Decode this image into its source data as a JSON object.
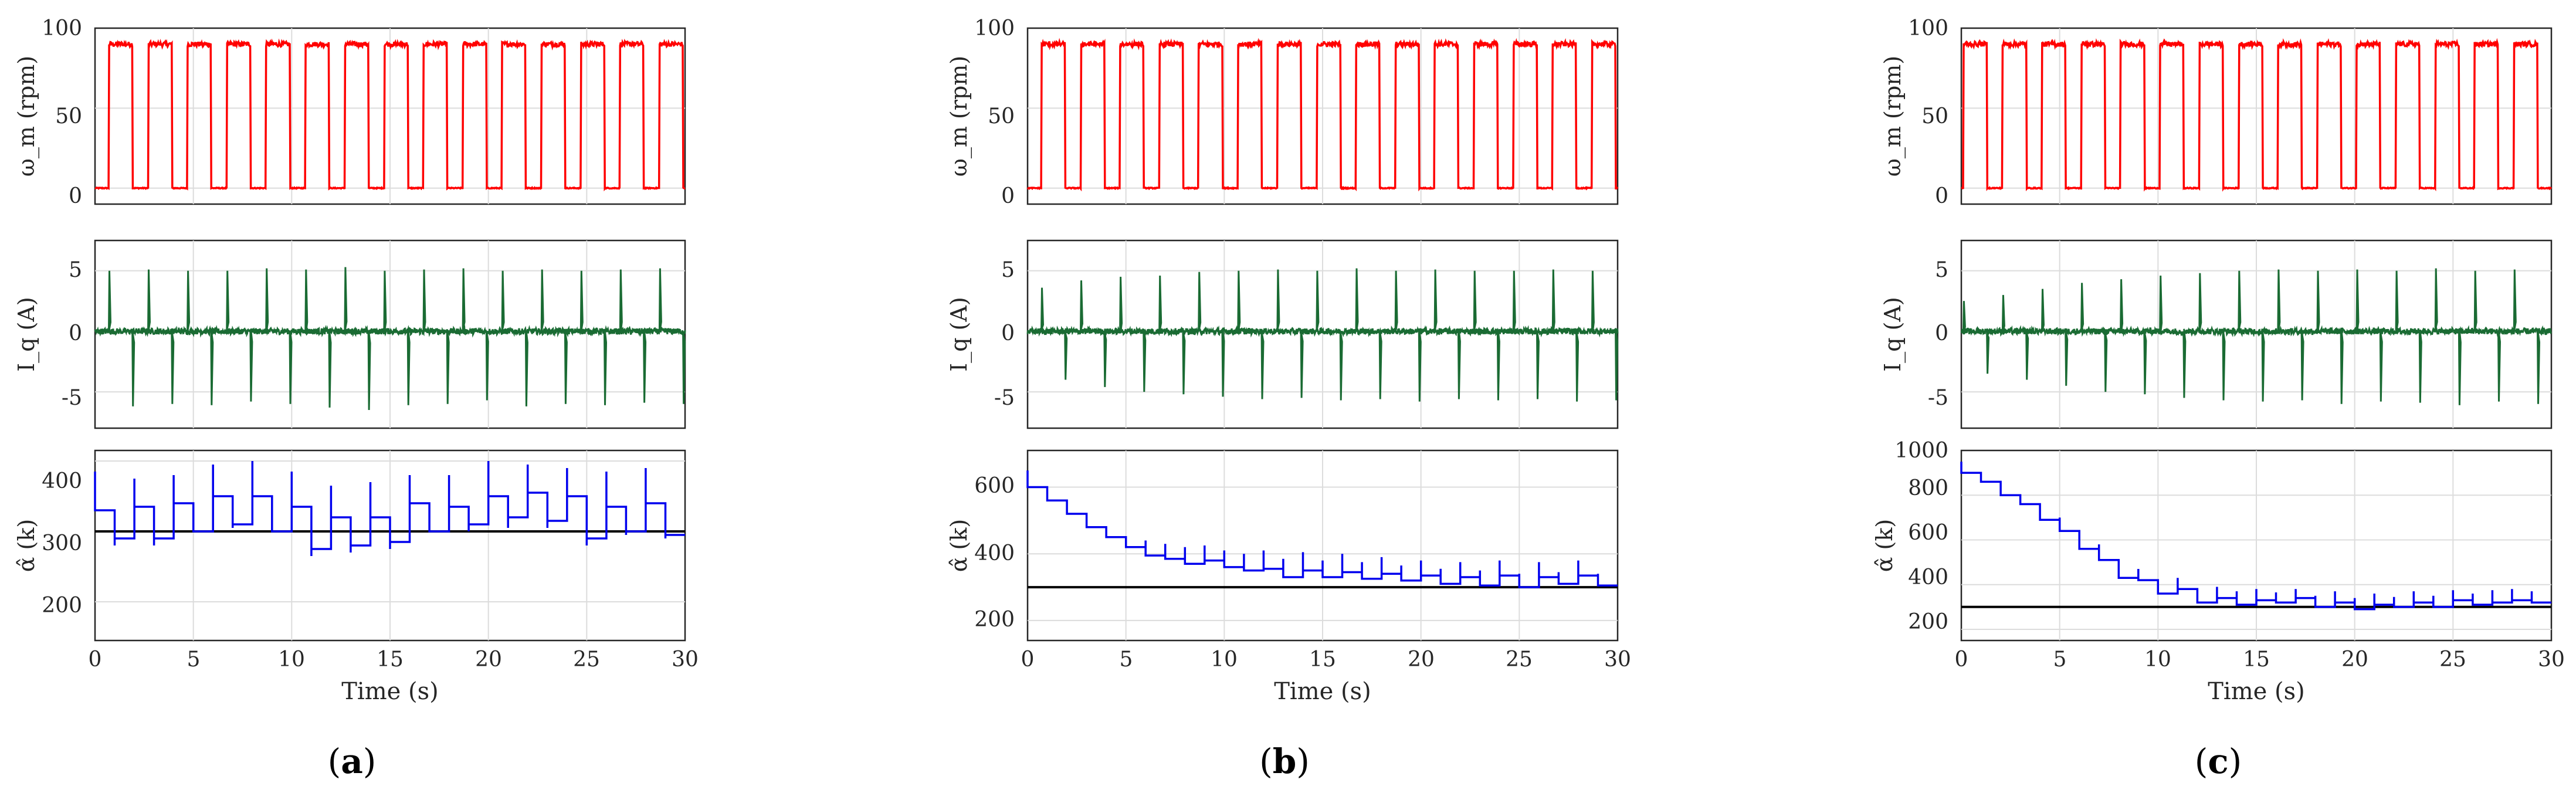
{
  "figure": {
    "x_label": "Time (s)",
    "x_ticks": [
      "0",
      "5",
      "10",
      "15",
      "20",
      "25",
      "30"
    ],
    "colors": {
      "speed": "#ff0000",
      "current": "#1a6b33",
      "alpha": "#0000ee",
      "reference": "#000000",
      "axis": "#262626"
    }
  },
  "chart_data": [
    {
      "id": "a",
      "caption": {
        "open": "(",
        "letter": "a",
        "close": ")"
      },
      "speed": {
        "type": "line",
        "ylabel": "ω_m (rpm)",
        "ylim": [
          -10,
          100
        ],
        "yticks": [
          "0",
          "50",
          "100"
        ],
        "high": 90,
        "low": 0,
        "period": 2,
        "duty": 0.6,
        "start_high": 0.7
      },
      "current": {
        "type": "line",
        "ylabel": "I_q (A)",
        "ylim": [
          -8,
          7.5
        ],
        "yticks": [
          "-5",
          "0",
          "5"
        ],
        "pos_spikes": [
          5.0,
          5.1,
          5.0,
          5.0,
          5.2,
          5.1,
          5.3,
          5.0,
          5.1,
          5.2,
          5.0,
          5.1,
          5.0,
          5.1,
          5.2
        ],
        "neg_spikes": [
          -6.2,
          -6.0,
          -6.1,
          -5.8,
          -6.0,
          -6.3,
          -6.5,
          -6.1,
          -6.0,
          -5.7,
          -6.2,
          -6.0,
          -6.1,
          -5.9,
          -6.0
        ]
      },
      "alpha": {
        "type": "step",
        "ylabel": "α̂ (k)",
        "ylim": [
          145,
          415
        ],
        "yticks": [
          "200",
          "300",
          "400"
        ],
        "reference": 300,
        "values": [
          330,
          290,
          335,
          290,
          340,
          300,
          350,
          310,
          350,
          300,
          335,
          275,
          320,
          280,
          320,
          285,
          340,
          300,
          335,
          310,
          350,
          320,
          355,
          315,
          350,
          290,
          335,
          300,
          340,
          295
        ],
        "overshoot": [
          385,
          280,
          375,
          280,
          380,
          300,
          395,
          305,
          400,
          300,
          385,
          265,
          365,
          270,
          370,
          275,
          380,
          300,
          380,
          300,
          400,
          305,
          395,
          305,
          390,
          280,
          385,
          295,
          390,
          290
        ]
      }
    },
    {
      "id": "b",
      "caption": {
        "open": "(",
        "letter": "b",
        "close": ")"
      },
      "speed": {
        "type": "line",
        "ylabel": "ω_m (rpm)",
        "ylim": [
          -10,
          100
        ],
        "yticks": [
          "0",
          "50",
          "100"
        ],
        "high": 90,
        "low": 0,
        "period": 2,
        "duty": 0.6,
        "start_high": 0.7
      },
      "current": {
        "type": "line",
        "ylabel": "I_q (A)",
        "ylim": [
          -8,
          7.5
        ],
        "yticks": [
          "-5",
          "0",
          "5"
        ],
        "pos_spikes": [
          3.6,
          4.2,
          4.5,
          4.6,
          4.9,
          5.0,
          5.1,
          5.0,
          5.2,
          5.0,
          5.1,
          5.0,
          5.0,
          5.1,
          5.0
        ],
        "neg_spikes": [
          -4.0,
          -4.6,
          -5.0,
          -5.2,
          -5.4,
          -5.6,
          -5.5,
          -5.7,
          -5.6,
          -5.8,
          -5.6,
          -5.7,
          -5.6,
          -5.8,
          -5.7
        ]
      },
      "alpha": {
        "type": "step",
        "ylabel": "α̂ (k)",
        "ylim": [
          140,
          710
        ],
        "yticks": [
          "200",
          "400",
          "600"
        ],
        "reference": 300,
        "values": [
          600,
          560,
          520,
          480,
          450,
          420,
          395,
          385,
          370,
          380,
          360,
          350,
          355,
          330,
          350,
          330,
          345,
          325,
          340,
          320,
          335,
          310,
          330,
          305,
          335,
          300,
          330,
          310,
          335,
          305
        ],
        "overshoot": [
          650,
          600,
          560,
          520,
          480,
          450,
          440,
          430,
          420,
          425,
          410,
          400,
          410,
          385,
          405,
          380,
          400,
          375,
          390,
          365,
          380,
          355,
          375,
          350,
          380,
          340,
          375,
          345,
          380,
          340
        ]
      }
    },
    {
      "id": "c",
      "caption": {
        "open": "(",
        "letter": "c",
        "close": ")"
      },
      "speed": {
        "type": "line",
        "ylabel": "ω_m (rpm)",
        "ylim": [
          -10,
          100
        ],
        "yticks": [
          "0",
          "50",
          "100"
        ],
        "high": 90,
        "low": 0,
        "period": 2,
        "duty": 0.6,
        "start_high": 0.1
      },
      "current": {
        "type": "line",
        "ylabel": "I_q (A)",
        "ylim": [
          -8,
          7.5
        ],
        "yticks": [
          "-5",
          "0",
          "5"
        ],
        "pos_spikes": [
          2.5,
          3.0,
          3.5,
          4.0,
          4.3,
          4.6,
          4.8,
          5.0,
          5.1,
          5.0,
          5.1,
          5.0,
          5.2,
          5.0,
          5.1
        ],
        "neg_spikes": [
          -3.5,
          -4.0,
          -4.5,
          -5.0,
          -5.2,
          -5.5,
          -5.7,
          -5.8,
          -5.7,
          -6.0,
          -5.8,
          -5.9,
          -6.1,
          -5.8,
          -6.0
        ]
      },
      "alpha": {
        "type": "step",
        "ylabel": "α̂ (k)",
        "ylim": [
          150,
          1000
        ],
        "yticks": [
          "200",
          "400",
          "600",
          "800",
          "1000"
        ],
        "reference": 300,
        "values": [
          900,
          860,
          800,
          760,
          690,
          640,
          560,
          510,
          430,
          420,
          360,
          380,
          320,
          340,
          310,
          330,
          320,
          340,
          300,
          320,
          290,
          310,
          300,
          320,
          300,
          330,
          310,
          320,
          330,
          320
        ],
        "overshoot": [
          950,
          900,
          850,
          800,
          750,
          700,
          620,
          580,
          500,
          470,
          420,
          430,
          380,
          390,
          370,
          380,
          365,
          380,
          350,
          370,
          340,
          360,
          345,
          370,
          350,
          375,
          360,
          375,
          380,
          370
        ]
      }
    }
  ]
}
